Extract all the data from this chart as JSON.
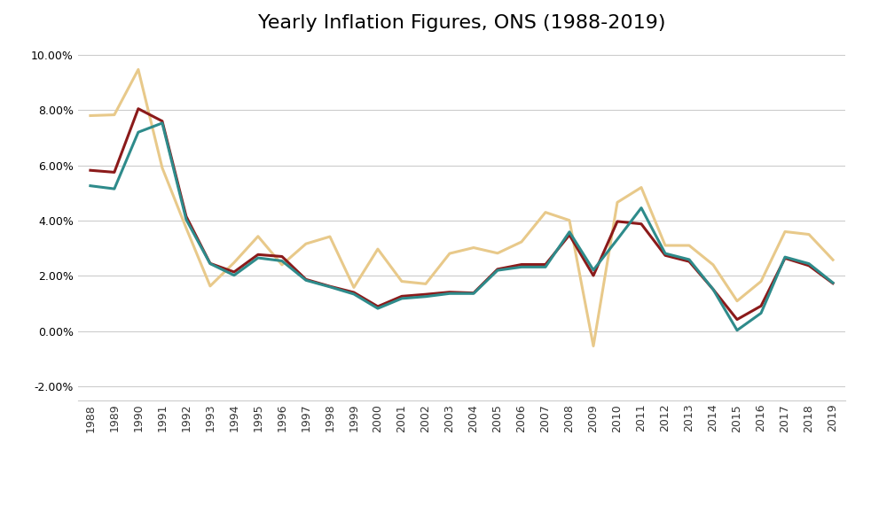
{
  "title": "Yearly Inflation Figures, ONS (1988-2019)",
  "years": [
    1988,
    1989,
    1990,
    1991,
    1992,
    1993,
    1994,
    1995,
    1996,
    1997,
    1998,
    1999,
    2000,
    2001,
    2002,
    2003,
    2004,
    2005,
    2006,
    2007,
    2008,
    2009,
    2010,
    2011,
    2012,
    2013,
    2014,
    2015,
    2016,
    2017,
    2018,
    2019
  ],
  "CPI": [
    0.0526,
    0.0515,
    0.072,
    0.0753,
    0.0404,
    0.0244,
    0.0202,
    0.0265,
    0.0254,
    0.0184,
    0.016,
    0.0134,
    0.0082,
    0.0118,
    0.0125,
    0.0136,
    0.0136,
    0.022,
    0.0232,
    0.0232,
    0.0359,
    0.0221,
    0.0332,
    0.0446,
    0.0281,
    0.0259,
    0.0151,
    0.0003,
    0.0065,
    0.0268,
    0.0244,
    0.0175
  ],
  "CPIH": [
    0.0582,
    0.0575,
    0.0805,
    0.076,
    0.0415,
    0.0245,
    0.0214,
    0.0277,
    0.027,
    0.0187,
    0.0162,
    0.014,
    0.0089,
    0.0126,
    0.0133,
    0.0141,
    0.0138,
    0.0224,
    0.0241,
    0.0241,
    0.0348,
    0.0201,
    0.0397,
    0.0388,
    0.0274,
    0.0252,
    0.0151,
    0.0042,
    0.0091,
    0.0264,
    0.0237,
    0.0173
  ],
  "RPI": [
    0.078,
    0.0783,
    0.0947,
    0.0591,
    0.0373,
    0.0163,
    0.0248,
    0.0343,
    0.024,
    0.0316,
    0.0342,
    0.0158,
    0.0297,
    0.018,
    0.0171,
    0.0281,
    0.0302,
    0.0282,
    0.0323,
    0.043,
    0.0401,
    -0.0054,
    0.0466,
    0.052,
    0.031,
    0.031,
    0.024,
    0.0109,
    0.018,
    0.036,
    0.035,
    0.0258
  ],
  "cpi_color": "#2E8B8B",
  "cpih_color": "#8B1A1A",
  "rpi_color": "#E8C98A",
  "ylim": [
    -0.025,
    0.105
  ],
  "yticks": [
    -0.02,
    0.0,
    0.02,
    0.04,
    0.06,
    0.08,
    0.1
  ],
  "background_color": "#ffffff",
  "grid_color": "#cccccc",
  "line_width": 2.2,
  "title_fontsize": 16
}
